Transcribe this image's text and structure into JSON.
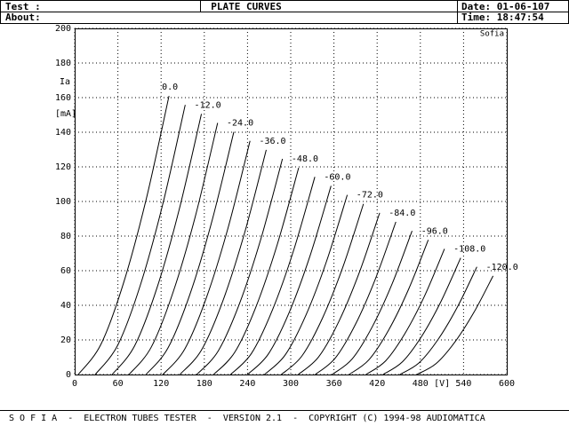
{
  "header": {
    "test_label": "Test :",
    "about_label": "About:",
    "title": "PLATE CURVES",
    "date": "Date: 01-06-107",
    "time": "Time: 18:47:54"
  },
  "chart_data": {
    "type": "line",
    "brand": "Sofia",
    "y_label": "Ia",
    "y_unit": "[mA]",
    "x_unit": "[V]",
    "xlim": [
      0,
      600
    ],
    "ylim": [
      0,
      200
    ],
    "xticks": [
      0,
      60,
      120,
      180,
      240,
      300,
      360,
      420,
      480,
      540,
      600
    ],
    "yticks": [
      0,
      20,
      40,
      60,
      80,
      100,
      120,
      140,
      160,
      180,
      200
    ],
    "grid": true,
    "color": "#000000",
    "series": [
      {
        "name": "0.0",
        "x": [
          5,
          36.5,
          68,
          99.5,
          131
        ],
        "values": [
          0,
          17.5,
          53.1,
          101.6,
          161
        ]
      },
      {
        "x": [
          28.5,
          59.8,
          91,
          122.3,
          153.5
        ],
        "values": [
          0,
          17.0,
          51.4,
          98.4,
          155.8
        ]
      },
      {
        "name": "-12.0",
        "x": [
          52,
          83,
          114,
          145,
          176
        ],
        "values": [
          0,
          16.4,
          49.7,
          95.1,
          150.6
        ]
      },
      {
        "x": [
          75.5,
          106.3,
          137,
          167.8,
          198.5
        ],
        "values": [
          0,
          15.8,
          48.0,
          91.8,
          145.4
        ]
      },
      {
        "name": "-24.0",
        "x": [
          99,
          129.5,
          160,
          190.5,
          221
        ],
        "values": [
          0,
          15.3,
          46.3,
          88.5,
          140.2
        ]
      },
      {
        "x": [
          122.5,
          152.8,
          183,
          213.3,
          243.5
        ],
        "values": [
          0,
          14.7,
          44.5,
          85.2,
          135
        ]
      },
      {
        "name": "-36.0",
        "x": [
          146,
          176,
          206,
          236,
          266
        ],
        "values": [
          0,
          14.1,
          42.8,
          81.9,
          129.8
        ]
      },
      {
        "x": [
          169.5,
          199.3,
          229,
          258.8,
          288.5
        ],
        "values": [
          0,
          13.6,
          41.1,
          78.7,
          124.6
        ]
      },
      {
        "name": "-48.0",
        "x": [
          193,
          222.5,
          252,
          281.5,
          311
        ],
        "values": [
          0,
          13.0,
          39.4,
          75.4,
          119.4
        ]
      },
      {
        "x": [
          216.5,
          245.8,
          275,
          304.3,
          333.5
        ],
        "values": [
          0,
          12.4,
          37.7,
          72.1,
          114.2
        ]
      },
      {
        "name": "-60.0",
        "x": [
          240,
          269,
          298,
          327,
          356
        ],
        "values": [
          0,
          11.9,
          36.0,
          68.8,
          109
        ]
      },
      {
        "x": [
          263.5,
          292.3,
          321,
          349.8,
          378.5
        ],
        "values": [
          0,
          11.3,
          34.2,
          65.5,
          103.8
        ]
      },
      {
        "name": "-72.0",
        "x": [
          287,
          315.5,
          344,
          372.5,
          401
        ],
        "values": [
          0,
          10.7,
          32.5,
          62.2,
          98.6
        ]
      },
      {
        "x": [
          310.5,
          338.8,
          367,
          395.3,
          423.5
        ],
        "values": [
          0,
          10.2,
          30.8,
          59.0,
          93.4
        ]
      },
      {
        "name": "-84.0",
        "x": [
          334,
          362,
          390,
          418,
          446
        ],
        "values": [
          0,
          9.6,
          29.1,
          55.7,
          88.2
        ]
      },
      {
        "x": [
          357.5,
          385.3,
          413,
          440.8,
          468.5
        ],
        "values": [
          0,
          9.0,
          27.4,
          52.4,
          83
        ]
      },
      {
        "name": "-96.0",
        "x": [
          381,
          408.5,
          436,
          463.5,
          491
        ],
        "values": [
          0,
          8.5,
          25.7,
          49.1,
          77.8
        ]
      },
      {
        "x": [
          404.5,
          431.8,
          459,
          486.3,
          513.5
        ],
        "values": [
          0,
          7.9,
          24.0,
          45.8,
          72.6
        ]
      },
      {
        "name": "-108.0",
        "x": [
          428,
          455,
          482,
          509,
          536
        ],
        "values": [
          0,
          7.3,
          22.2,
          42.5,
          67.4
        ]
      },
      {
        "x": [
          451.5,
          478.3,
          505,
          531.8,
          558.5
        ],
        "values": [
          0,
          6.8,
          20.5,
          39.3,
          62.2
        ]
      },
      {
        "name": "-120.0",
        "x": [
          475,
          501.5,
          528,
          554.5,
          581
        ],
        "values": [
          0,
          6.2,
          18.8,
          36.0,
          57
        ]
      }
    ]
  },
  "footer": "S O F I A  -  ELECTRON TUBES TESTER  -  VERSION 2.1  -  COPYRIGHT (C) 1994-98 AUDIOMATICA"
}
